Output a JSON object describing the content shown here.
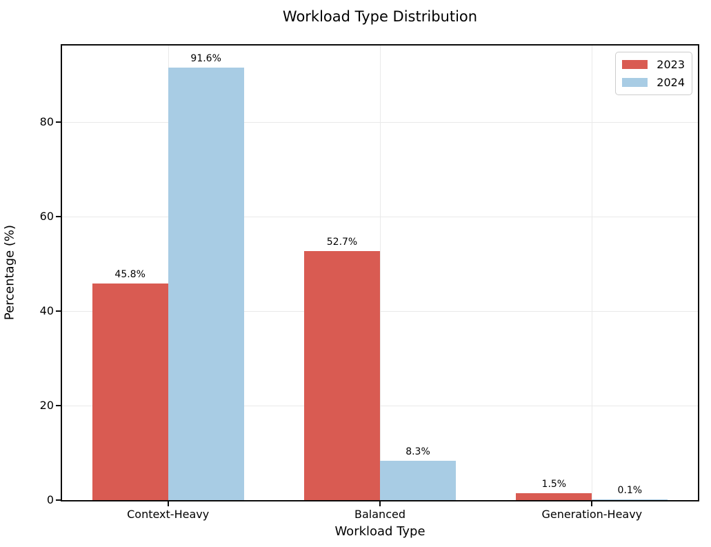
{
  "title": "Workload Type Distribution",
  "chart_data": {
    "type": "bar",
    "title": "Workload Type Distribution",
    "xlabel": "Workload Type",
    "ylabel": "Percentage (%)",
    "categories": [
      "Context-Heavy",
      "Balanced",
      "Generation-Heavy"
    ],
    "series": [
      {
        "name": "2023",
        "color": "#d95b52",
        "values": [
          45.8,
          52.7,
          1.5
        ],
        "labels": [
          "45.8%",
          "52.7%",
          "1.5%"
        ]
      },
      {
        "name": "2024",
        "color": "#a8cce4",
        "values": [
          91.6,
          8.3,
          0.1
        ],
        "labels": [
          "91.6%",
          "8.3%",
          "0.1%"
        ]
      }
    ],
    "ylim": [
      0,
      96.2
    ],
    "yticks": [
      0,
      20,
      40,
      60,
      80
    ],
    "grid": true,
    "legend_position": "upper right"
  }
}
